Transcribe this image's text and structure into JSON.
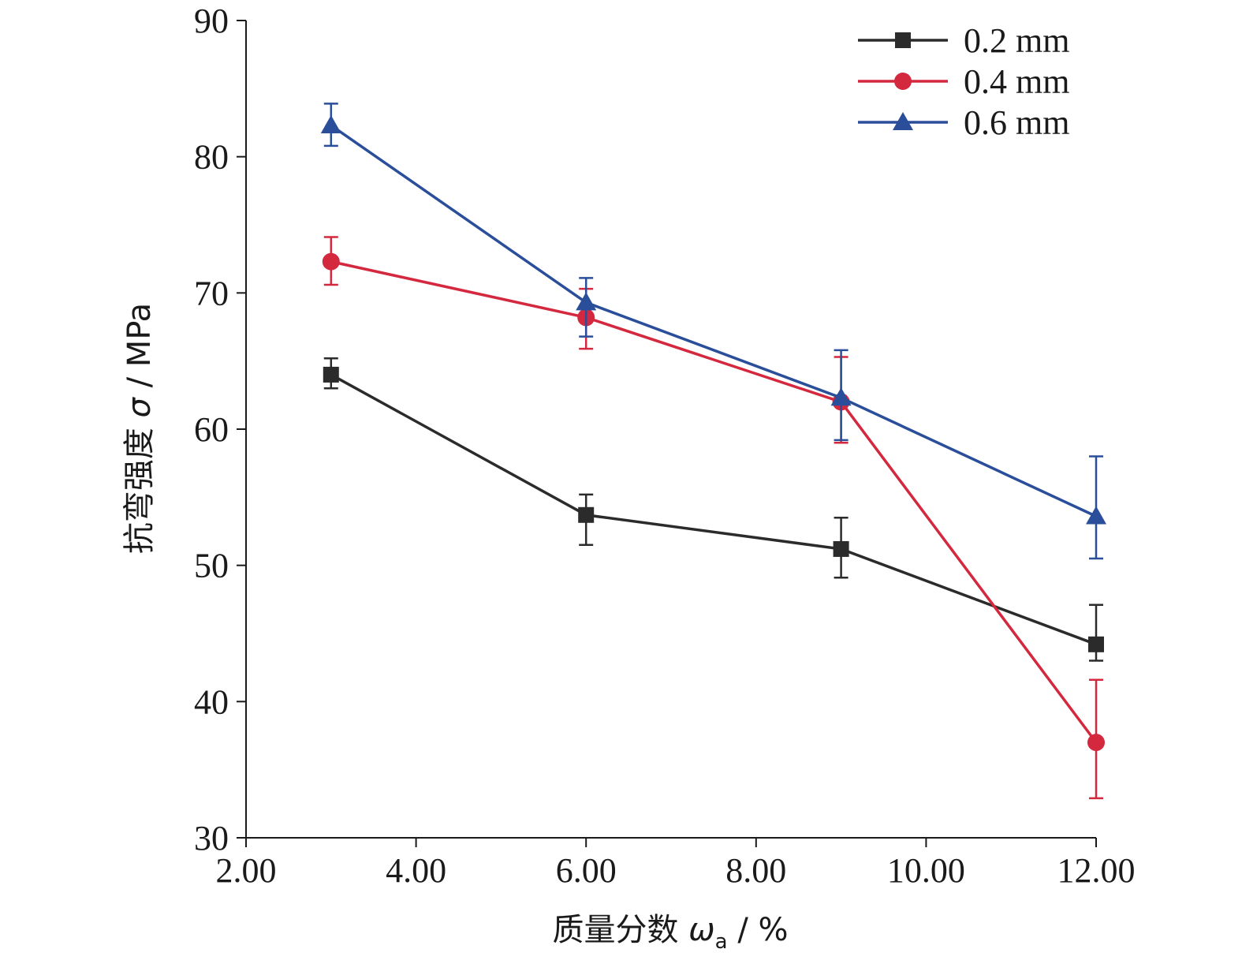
{
  "chart_data": {
    "type": "line",
    "xlabel": {
      "prefix": "质量分数 ",
      "symbol": "ω",
      "subscript": "a",
      "suffix": " / %"
    },
    "ylabel": {
      "prefix": "抗弯强度 ",
      "symbol": "σ",
      "suffix": " / MPa"
    },
    "xlim": [
      2.0,
      12.0
    ],
    "ylim": [
      30,
      90
    ],
    "xticks": [
      "2.00",
      "4.00",
      "6.00",
      "8.00",
      "10.00",
      "12.00"
    ],
    "yticks": [
      "30",
      "40",
      "50",
      "60",
      "70",
      "80",
      "90"
    ],
    "x": [
      3.0,
      6.0,
      9.0,
      12.0
    ],
    "legend_position": "top-right",
    "grid": false,
    "series": [
      {
        "name": "0.2 mm",
        "color": "#2b2b2b",
        "marker": "square",
        "values": [
          64.0,
          53.7,
          51.2,
          44.2
        ],
        "error": [
          [
            63.0,
            65.2
          ],
          [
            51.5,
            55.2
          ],
          [
            49.1,
            53.5
          ],
          [
            43.0,
            47.1
          ]
        ]
      },
      {
        "name": "0.4 mm",
        "color": "#d4283f",
        "marker": "circle",
        "values": [
          72.3,
          68.2,
          62.0,
          37.0
        ],
        "error": [
          [
            70.6,
            74.1
          ],
          [
            65.9,
            70.3
          ],
          [
            59.0,
            65.3
          ],
          [
            32.9,
            41.6
          ]
        ]
      },
      {
        "name": "0.6 mm",
        "color": "#2a4e9a",
        "marker": "triangle",
        "values": [
          82.3,
          69.3,
          62.3,
          53.6
        ],
        "error": [
          [
            80.8,
            83.9
          ],
          [
            66.8,
            71.1
          ],
          [
            59.2,
            65.8
          ],
          [
            50.5,
            58.0
          ]
        ]
      }
    ]
  }
}
